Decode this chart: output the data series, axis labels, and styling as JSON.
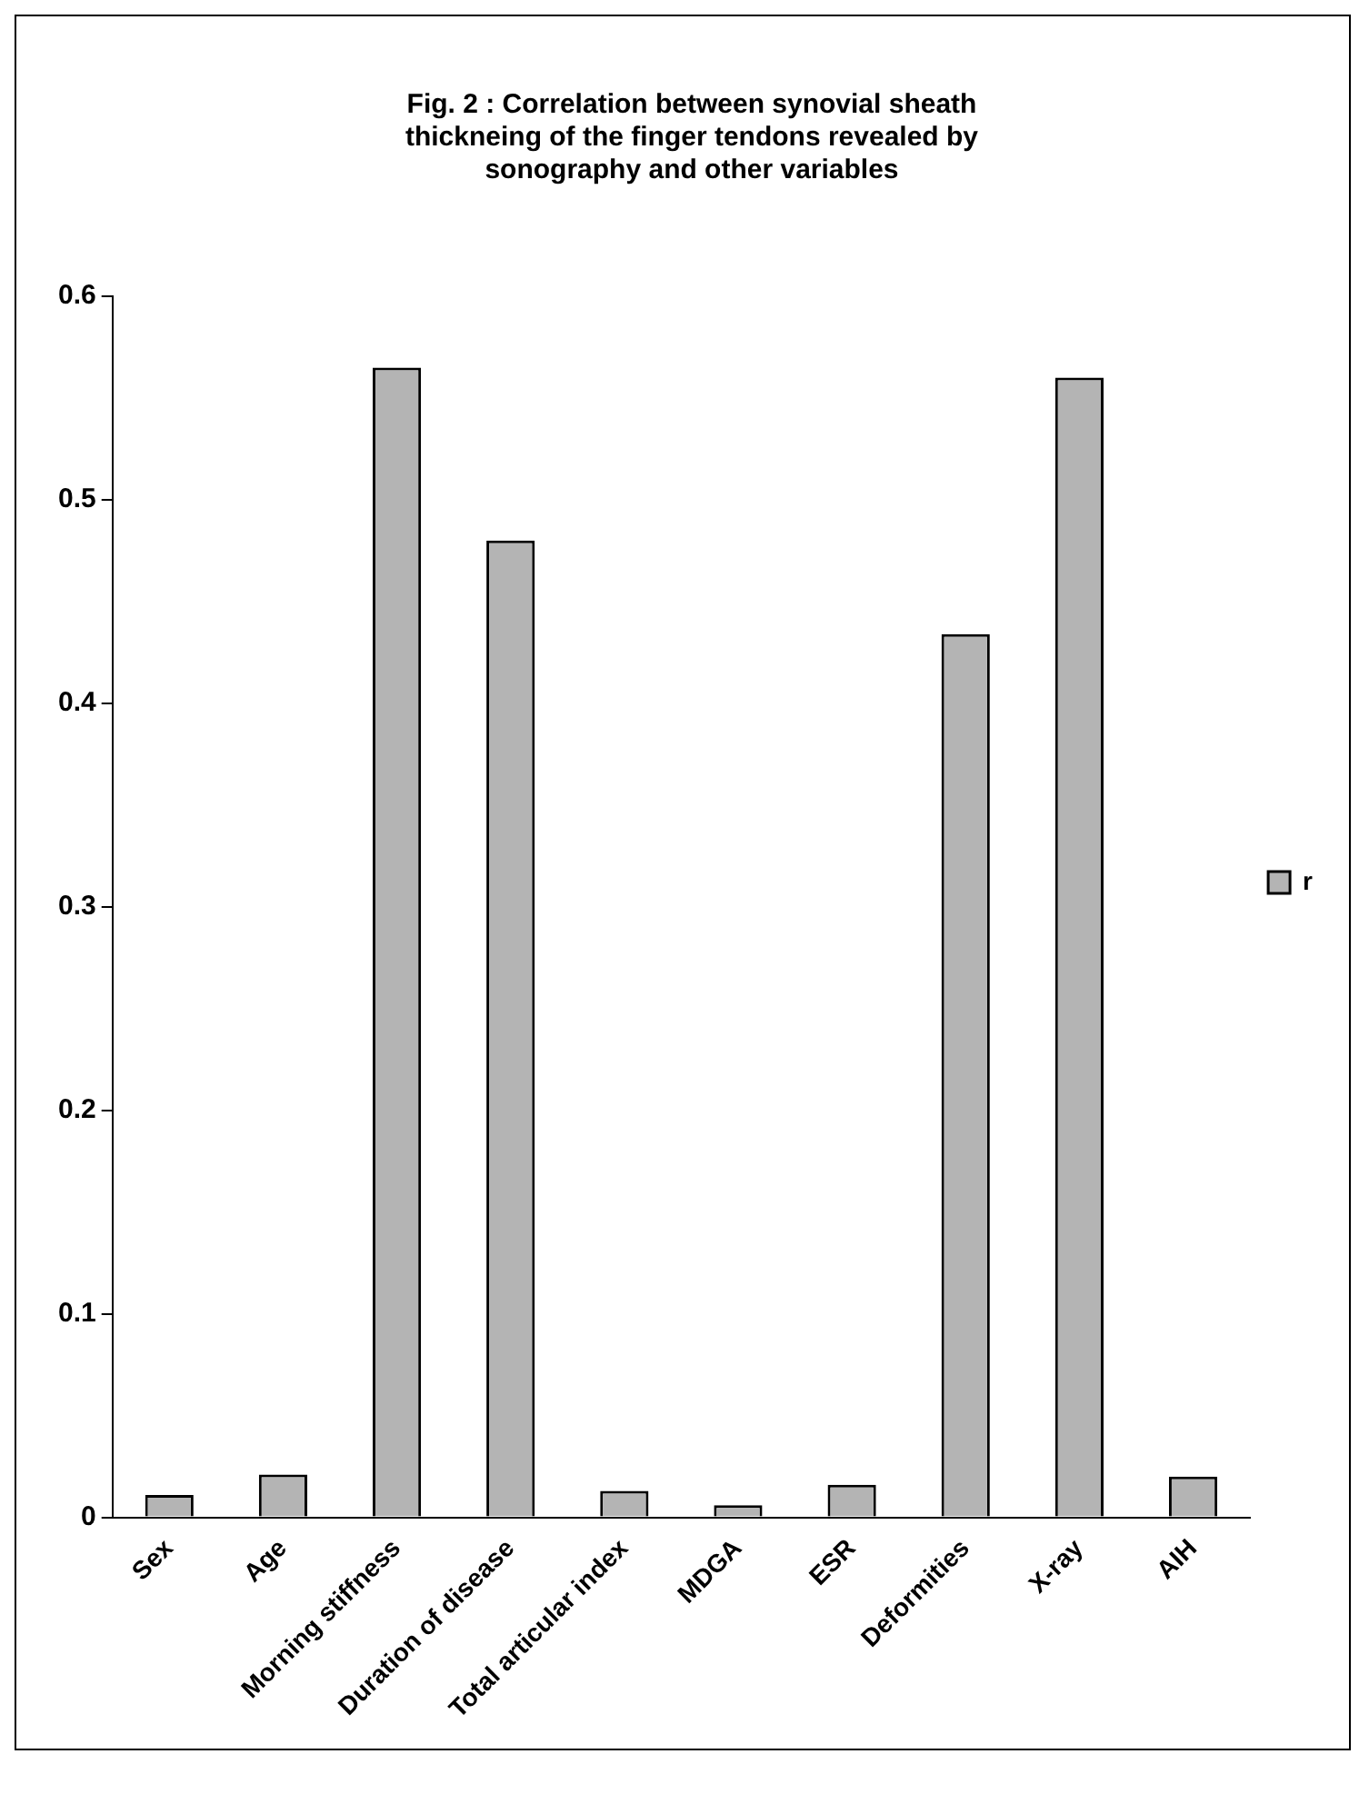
{
  "chart_data": {
    "type": "bar",
    "title": "Fig. 2 : Correlation between synovial sheath thickneing of the finger tendons revealed by sonography and other variables",
    "categories": [
      "Sex",
      "Age",
      "Morning stiffness",
      "Duration of disease",
      "Total articular index",
      "MDGA",
      "ESR",
      "Deformities",
      "X-ray",
      "AIH"
    ],
    "series": [
      {
        "name": "r",
        "color": "#b4b4b4",
        "values": [
          0.011,
          0.021,
          0.565,
          0.48,
          0.013,
          0.006,
          0.016,
          0.434,
          0.56,
          0.02
        ]
      }
    ],
    "ylim": [
      0,
      0.6
    ],
    "yticks": [
      0,
      0.1,
      0.2,
      0.3,
      0.4,
      0.5,
      0.6
    ],
    "grid": false,
    "legend": "right"
  }
}
